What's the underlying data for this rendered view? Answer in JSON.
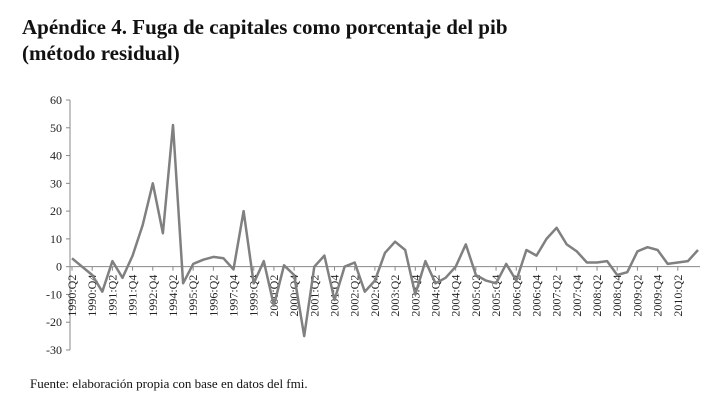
{
  "chart_data": {
    "type": "line",
    "title": "Apéndice 4. Fuga de capitales como porcentaje del pib",
    "subtitle": "(método residual)",
    "source": "Fuente: elaboración propia con base en datos del fmi.",
    "categories": [
      "1990:Q2",
      null,
      "1990:Q4",
      null,
      "1991:Q2",
      null,
      "1991:Q4",
      null,
      "1992:Q4",
      null,
      "1994:Q2",
      null,
      "1995:Q2",
      null,
      "1996:Q2",
      null,
      "1997:Q4",
      null,
      "1999:Q4",
      null,
      "2000:Q2",
      null,
      "2000:Q4",
      null,
      "2001:Q2",
      null,
      "2001:Q4",
      null,
      "2002:Q2",
      null,
      "2002:Q4",
      null,
      "2003:Q2",
      null,
      "2003:Q4",
      null,
      "2004:Q2",
      null,
      "2004:Q4",
      null,
      "2005:Q2",
      null,
      "2005:Q4",
      null,
      "2006:Q2",
      null,
      "2006:Q4",
      null,
      "2007:Q2",
      null,
      "2007:Q4",
      null,
      "2008:Q2",
      null,
      "2008:Q4",
      null,
      "2009:Q2",
      null,
      "2009:Q4",
      null,
      "2010:Q2",
      null,
      null
    ],
    "series": [
      {
        "name": "Fuga de capitales",
        "color": "#808080",
        "values": [
          3,
          0,
          -3,
          -9,
          2,
          -4,
          4,
          15,
          30,
          12,
          51,
          -6,
          1,
          2.5,
          3.5,
          3,
          -1,
          20,
          -6,
          2,
          -14,
          0.5,
          -3,
          -25,
          0,
          4,
          -12,
          0,
          1.5,
          -9,
          -5,
          5,
          9,
          6,
          -10,
          2,
          -6,
          -4,
          0,
          8,
          -3,
          -5,
          -6,
          1,
          -5,
          6,
          4,
          10,
          14,
          8,
          5.5,
          1.5,
          1.5,
          2,
          -3,
          -2,
          5.5,
          7,
          6,
          1,
          1.5,
          2,
          6
        ]
      }
    ],
    "ylim": [
      -30,
      60
    ],
    "yticks": [
      -30,
      -20,
      -10,
      0,
      10,
      20,
      30,
      40,
      50,
      60
    ]
  }
}
